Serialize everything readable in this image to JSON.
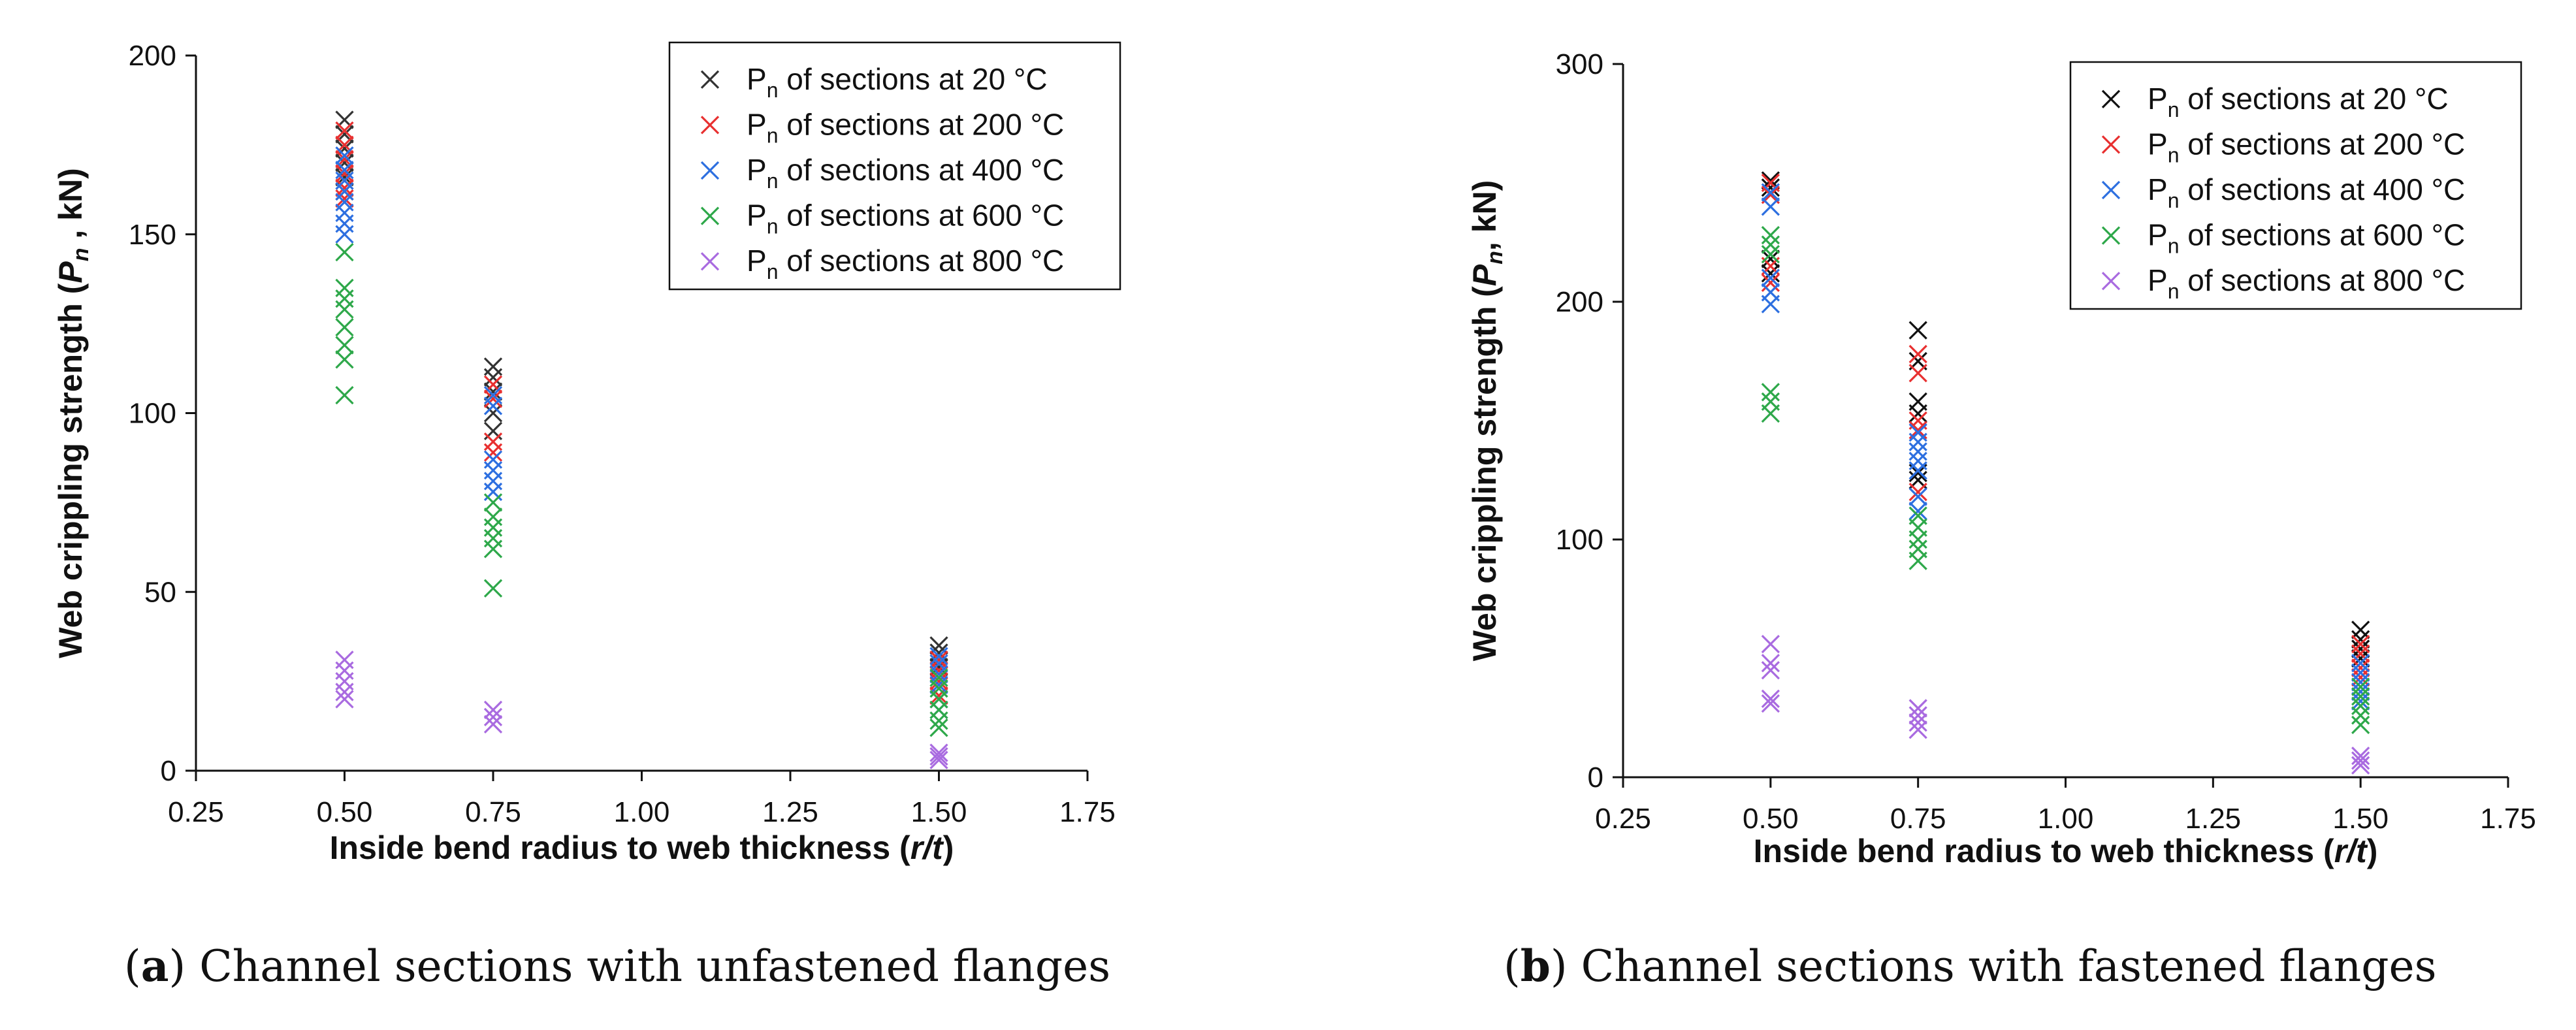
{
  "chart_data": [
    {
      "panel": "a",
      "type": "scatter",
      "caption_letter": "a",
      "caption_text": "Channel sections with unfastened flanges",
      "xlabel_parts": [
        "Inside bend radius to web thickness (",
        "r/t",
        ")"
      ],
      "ylabel_parts": [
        "Web crippling strength (",
        "P",
        "n",
        " , kN)"
      ],
      "xlim": [
        0.25,
        1.75
      ],
      "ylim": [
        0,
        200
      ],
      "xticks": [
        "0.25",
        "0.50",
        "0.75",
        "1.00",
        "1.25",
        "1.50",
        "1.75"
      ],
      "yticks": [
        "0",
        "50",
        "100",
        "150",
        "200"
      ],
      "legend_placement": "top-right",
      "series": [
        {
          "name": "P",
          "sub": "n",
          "suffix": " of sections at 20 °C",
          "color": "#333333",
          "points": [
            [
              0.5,
              182
            ],
            [
              0.5,
              178
            ],
            [
              0.5,
              174
            ],
            [
              0.5,
              170
            ],
            [
              0.5,
              166
            ],
            [
              0.5,
              162
            ],
            [
              0.75,
              113
            ],
            [
              0.75,
              110
            ],
            [
              0.75,
              106
            ],
            [
              0.75,
              100
            ],
            [
              0.75,
              95
            ],
            [
              1.5,
              35
            ],
            [
              1.5,
              33
            ],
            [
              1.5,
              31
            ],
            [
              1.5,
              29
            ]
          ]
        },
        {
          "name": "P",
          "sub": "n",
          "suffix": " of sections at 200 °C",
          "color": "#e83030",
          "points": [
            [
              0.5,
              179
            ],
            [
              0.5,
              175
            ],
            [
              0.5,
              171
            ],
            [
              0.5,
              167
            ],
            [
              0.5,
              163
            ],
            [
              0.5,
              160
            ],
            [
              0.75,
              108
            ],
            [
              0.75,
              104
            ],
            [
              0.75,
              92
            ],
            [
              0.75,
              89
            ],
            [
              1.5,
              31
            ],
            [
              1.5,
              28
            ],
            [
              1.5,
              25
            ],
            [
              1.5,
              21
            ]
          ]
        },
        {
          "name": "P",
          "sub": "n",
          "suffix": " of sections at 400 °C",
          "color": "#2d6fe0",
          "points": [
            [
              0.5,
              172
            ],
            [
              0.5,
              168
            ],
            [
              0.5,
              165
            ],
            [
              0.5,
              162
            ],
            [
              0.5,
              159
            ],
            [
              0.5,
              156
            ],
            [
              0.5,
              153
            ],
            [
              0.5,
              150
            ],
            [
              0.75,
              105
            ],
            [
              0.75,
              102
            ],
            [
              0.75,
              87
            ],
            [
              0.75,
              84
            ],
            [
              0.75,
              81
            ],
            [
              0.75,
              78
            ],
            [
              1.5,
              32
            ],
            [
              1.5,
              30
            ],
            [
              1.5,
              27
            ],
            [
              1.5,
              24
            ],
            [
              1.5,
              20
            ],
            [
              1.5,
              17
            ]
          ]
        },
        {
          "name": "P",
          "sub": "n",
          "suffix": " of sections at 600 °C",
          "color": "#2ea84a",
          "points": [
            [
              0.5,
              145
            ],
            [
              0.5,
              135
            ],
            [
              0.5,
              132
            ],
            [
              0.5,
              129
            ],
            [
              0.5,
              124
            ],
            [
              0.5,
              119
            ],
            [
              0.5,
              115
            ],
            [
              0.5,
              105
            ],
            [
              0.75,
              75
            ],
            [
              0.75,
              71
            ],
            [
              0.75,
              68
            ],
            [
              0.75,
              65
            ],
            [
              0.75,
              62
            ],
            [
              0.75,
              51
            ],
            [
              1.5,
              26
            ],
            [
              1.5,
              23
            ],
            [
              1.5,
              20
            ],
            [
              1.5,
              17
            ],
            [
              1.5,
              14
            ],
            [
              1.5,
              12
            ]
          ]
        },
        {
          "name": "P",
          "sub": "n",
          "suffix": " of sections at 800 °C",
          "color": "#a96be0",
          "points": [
            [
              0.5,
              31
            ],
            [
              0.5,
              28
            ],
            [
              0.5,
              25
            ],
            [
              0.5,
              22
            ],
            [
              0.5,
              20
            ],
            [
              0.75,
              17
            ],
            [
              0.75,
              15
            ],
            [
              0.75,
              13
            ],
            [
              1.5,
              5
            ],
            [
              1.5,
              4
            ],
            [
              1.5,
              3
            ]
          ]
        }
      ]
    },
    {
      "panel": "b",
      "type": "scatter",
      "caption_letter": "b",
      "caption_text": "Channel sections with fastened flanges",
      "xlabel_parts": [
        "Inside bend radius to web thickness (",
        "r/t",
        ")"
      ],
      "ylabel_parts": [
        "Web crippling strength (",
        "P",
        "n",
        ", kN)"
      ],
      "xlim": [
        0.25,
        1.75
      ],
      "ylim": [
        0,
        300
      ],
      "xticks": [
        "0.25",
        "0.50",
        "0.75",
        "1.00",
        "1.25",
        "1.50",
        "1.75"
      ],
      "yticks": [
        "0",
        "100",
        "200",
        "300"
      ],
      "legend_placement": "top-right",
      "series": [
        {
          "name": "P",
          "sub": "n",
          "suffix": " of sections at 20 °C",
          "color": "#111111",
          "points": [
            [
              0.5,
              251
            ],
            [
              0.5,
              248
            ],
            [
              0.5,
              218
            ],
            [
              0.5,
              212
            ],
            [
              0.75,
              188
            ],
            [
              0.75,
              175
            ],
            [
              0.75,
              158
            ],
            [
              0.75,
              153
            ],
            [
              0.75,
              128
            ],
            [
              0.75,
              125
            ],
            [
              1.5,
              62
            ],
            [
              1.5,
              58
            ],
            [
              1.5,
              54
            ],
            [
              1.5,
              50
            ]
          ]
        },
        {
          "name": "P",
          "sub": "n",
          "suffix": " of sections at 200 °C",
          "color": "#e83030",
          "points": [
            [
              0.5,
              250
            ],
            [
              0.5,
              245
            ],
            [
              0.5,
              215
            ],
            [
              0.5,
              208
            ],
            [
              0.75,
              178
            ],
            [
              0.75,
              170
            ],
            [
              0.75,
              150
            ],
            [
              0.75,
              146
            ],
            [
              0.75,
              120
            ],
            [
              1.5,
              56
            ],
            [
              1.5,
              52
            ],
            [
              1.5,
              46
            ],
            [
              1.5,
              42
            ]
          ]
        },
        {
          "name": "P",
          "sub": "n",
          "suffix": " of sections at 400 °C",
          "color": "#2d6fe0",
          "points": [
            [
              0.5,
              246
            ],
            [
              0.5,
              240
            ],
            [
              0.5,
              210
            ],
            [
              0.5,
              204
            ],
            [
              0.5,
              199
            ],
            [
              0.75,
              145
            ],
            [
              0.75,
              141
            ],
            [
              0.75,
              137
            ],
            [
              0.75,
              133
            ],
            [
              0.75,
              129
            ],
            [
              0.75,
              118
            ],
            [
              0.75,
              112
            ],
            [
              1.5,
              48
            ],
            [
              1.5,
              44
            ],
            [
              1.5,
              40
            ],
            [
              1.5,
              36
            ],
            [
              1.5,
              32
            ]
          ]
        },
        {
          "name": "P",
          "sub": "n",
          "suffix": " of sections at 600 °C",
          "color": "#2ea84a",
          "points": [
            [
              0.5,
              228
            ],
            [
              0.5,
              224
            ],
            [
              0.5,
              220
            ],
            [
              0.5,
              162
            ],
            [
              0.5,
              158
            ],
            [
              0.5,
              153
            ],
            [
              0.75,
              110
            ],
            [
              0.75,
              105
            ],
            [
              0.75,
              100
            ],
            [
              0.75,
              96
            ],
            [
              0.75,
              91
            ],
            [
              1.5,
              38
            ],
            [
              1.5,
              34
            ],
            [
              1.5,
              30
            ],
            [
              1.5,
              26
            ],
            [
              1.5,
              22
            ]
          ]
        },
        {
          "name": "P",
          "sub": "n",
          "suffix": " of sections at 800 °C",
          "color": "#a96be0",
          "points": [
            [
              0.5,
              56
            ],
            [
              0.5,
              48
            ],
            [
              0.5,
              45
            ],
            [
              0.5,
              33
            ],
            [
              0.5,
              31
            ],
            [
              0.75,
              29
            ],
            [
              0.75,
              26
            ],
            [
              0.75,
              23
            ],
            [
              0.75,
              20
            ],
            [
              1.5,
              9
            ],
            [
              1.5,
              7
            ],
            [
              1.5,
              5
            ]
          ]
        }
      ]
    }
  ]
}
